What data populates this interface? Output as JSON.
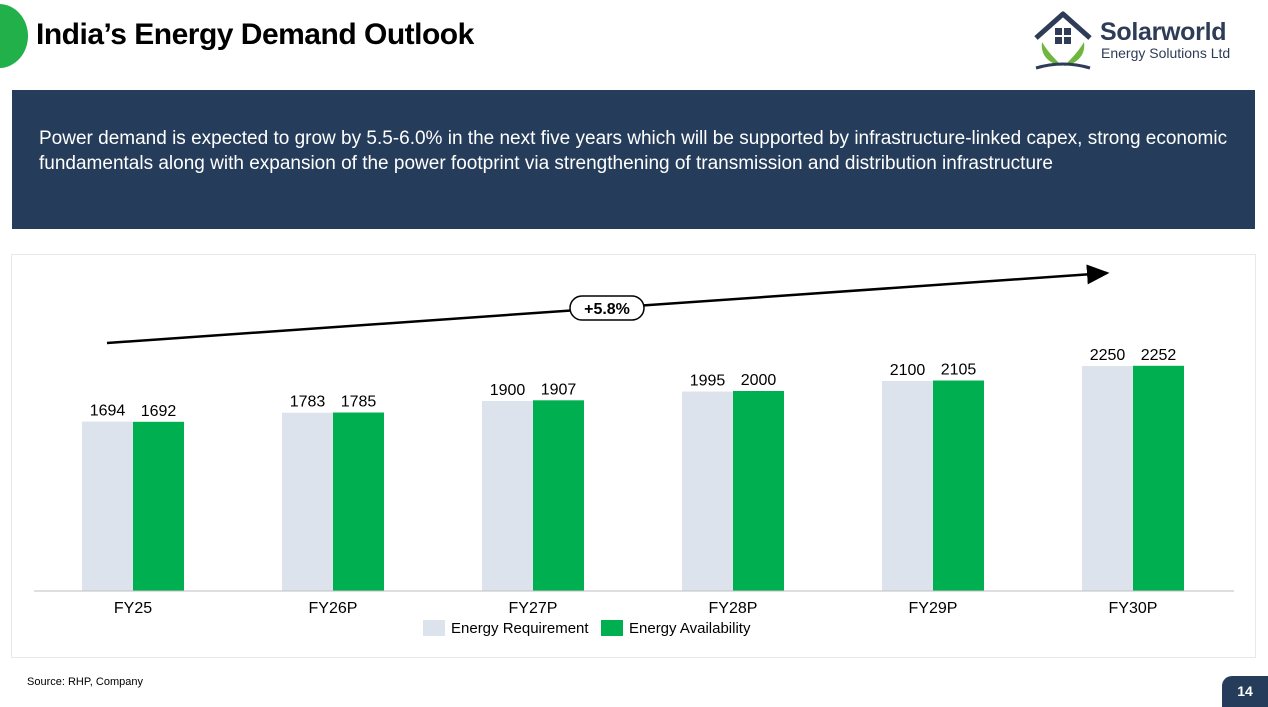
{
  "page": {
    "title": "India’s Energy Demand Outlook",
    "banner_text": "Power demand is expected to grow by 5.5-6.0% in the next five years which will be supported by infrastructure-linked capex, strong economic fundamentals along with expansion of the power footprint via strengthening of transmission and distribution infrastructure",
    "source": "Source: RHP, Company",
    "page_number": "14"
  },
  "logo": {
    "brand": "Solarworld",
    "subtitle": "Energy Solutions Ltd"
  },
  "colors": {
    "accent_green": "#22b04b",
    "navy": "#253d5b",
    "requirement": "#dde3ec",
    "availability": "#00b050"
  },
  "chart_data": {
    "type": "bar",
    "categories": [
      "FY25",
      "FY26P",
      "FY27P",
      "FY28P",
      "FY29P",
      "FY30P"
    ],
    "series": [
      {
        "name": "Energy Requirement",
        "values": [
          1694,
          1783,
          1900,
          1995,
          2100,
          2250
        ]
      },
      {
        "name": "Energy Availability",
        "values": [
          1692,
          1785,
          1907,
          2000,
          2105,
          2252
        ]
      }
    ],
    "annotation": "+5.8%",
    "ylim": [
      0,
      2500
    ],
    "legend_position": "bottom",
    "grid": false,
    "title": "",
    "xlabel": "",
    "ylabel": ""
  }
}
